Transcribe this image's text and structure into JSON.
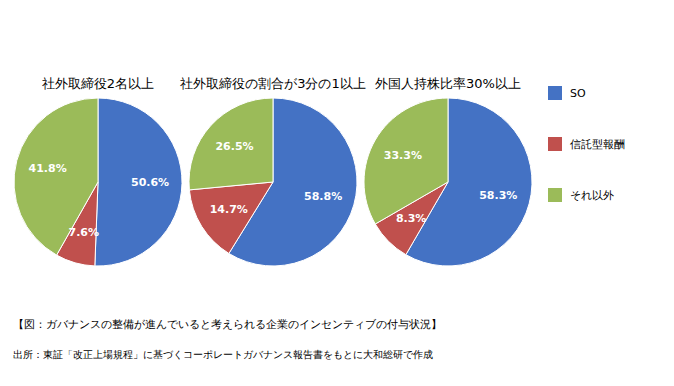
{
  "chart_data": [
    {
      "type": "pie",
      "title": "社外取締役2名以上",
      "values": [
        50.6,
        7.6,
        41.8
      ],
      "value_labels": [
        "50.6%",
        "7.6%",
        "41.8%"
      ],
      "data_labels": true
    },
    {
      "type": "pie",
      "title": "社外取締役の割合が3分の1以上",
      "values": [
        58.8,
        14.7,
        26.5
      ],
      "value_labels": [
        "58.8%",
        "14.7%",
        "26.5%"
      ],
      "data_labels": true
    },
    {
      "type": "pie",
      "title": "外国人持株比率30%以上",
      "values": [
        58.3,
        8.3,
        33.3
      ],
      "value_labels": [
        "58.3%",
        "8.3%",
        "33.3%"
      ],
      "data_labels": true
    }
  ],
  "categories": [
    "SO",
    "信託型報酬",
    "それ以外"
  ],
  "colors": [
    "#4472c4",
    "#c0504d",
    "#9bbb59"
  ],
  "caption": "【図：ガバナンスの整備が進んでいると考えられる企業のインセンティブの付与状況】",
  "source": "出所：東証「改正上場規程」に基づくコーポレートガバナンス報告書をもとに大和総研で作成"
}
